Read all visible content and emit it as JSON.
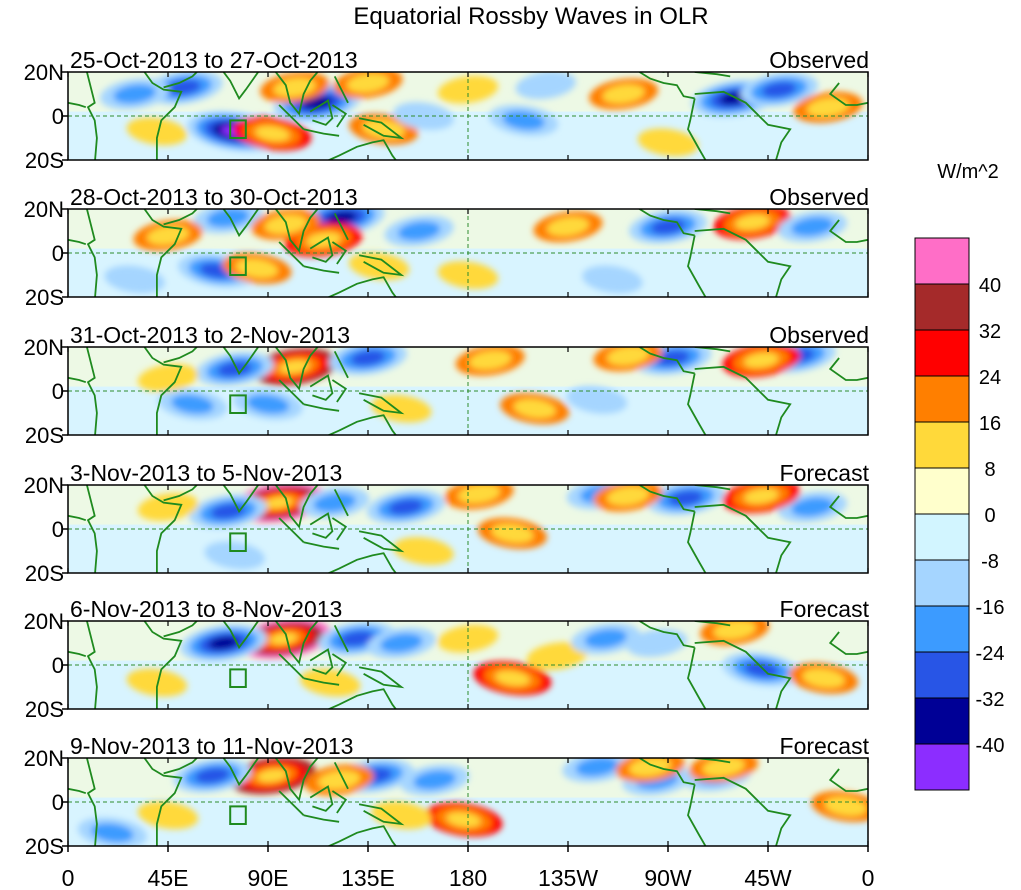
{
  "chart_data": {
    "type": "heatmap",
    "title": "Equatorial Rossby Waves in OLR",
    "variable": "OLR anomaly",
    "units": "W/m^2",
    "x_ticks": [
      "0",
      "45E",
      "90E",
      "135E",
      "180",
      "135W",
      "90W",
      "45W",
      "0"
    ],
    "x_range_deg_east": [
      0,
      360
    ],
    "y_ticks": [
      "20N",
      "0",
      "20S"
    ],
    "y_range_deg": [
      -20,
      20
    ],
    "colorbar": {
      "levels": [
        "40",
        "32",
        "24",
        "16",
        "8",
        "0",
        "-8",
        "-16",
        "-24",
        "-32",
        "-40"
      ],
      "colors": [
        "#ff6ec7",
        "#a52a2a",
        "#ff0000",
        "#ff7f00",
        "#ffd93a",
        "#ffffcc",
        "#d2f5ff",
        "#a5d5ff",
        "#3c9bff",
        "#2855e6",
        "#000096",
        "#8c2dff"
      ]
    },
    "panels": [
      {
        "date_range": "25-Oct-2013 to 27-Oct-2013",
        "status": "Observed",
        "features": [
          {
            "lon": 75,
            "lat": -7,
            "value": -40
          },
          {
            "lon": 52,
            "lat": 13,
            "value": -24
          },
          {
            "lon": 112,
            "lat": 6,
            "value": -32
          },
          {
            "lon": 300,
            "lat": 8,
            "value": -32
          },
          {
            "lon": 320,
            "lat": 12,
            "value": -24
          },
          {
            "lon": 92,
            "lat": -8,
            "value": 24
          },
          {
            "lon": 102,
            "lat": 13,
            "value": 16
          },
          {
            "lon": 135,
            "lat": 15,
            "value": 16
          },
          {
            "lon": 142,
            "lat": -6,
            "value": 16
          },
          {
            "lon": 250,
            "lat": 10,
            "value": 16
          },
          {
            "lon": 342,
            "lat": 4,
            "value": 16
          },
          {
            "lon": 30,
            "lat": 10,
            "value": -16
          },
          {
            "lon": 205,
            "lat": -2,
            "value": -16
          },
          {
            "lon": 180,
            "lat": 12,
            "value": 8
          },
          {
            "lon": 40,
            "lat": -7,
            "value": 8
          },
          {
            "lon": 270,
            "lat": -12,
            "value": 8
          },
          {
            "lon": 160,
            "lat": 0,
            "value": -8
          },
          {
            "lon": 215,
            "lat": 14,
            "value": -8
          }
        ]
      },
      {
        "date_range": "28-Oct-2013 to 30-Oct-2013",
        "status": "Observed",
        "features": [
          {
            "lon": 123,
            "lat": 16,
            "value": -32
          },
          {
            "lon": 67,
            "lat": -8,
            "value": -24
          },
          {
            "lon": 72,
            "lat": 16,
            "value": -16
          },
          {
            "lon": 158,
            "lat": 10,
            "value": -16
          },
          {
            "lon": 270,
            "lat": 12,
            "value": -24
          },
          {
            "lon": 115,
            "lat": 6,
            "value": 24
          },
          {
            "lon": 98,
            "lat": 13,
            "value": 16
          },
          {
            "lon": 85,
            "lat": -7,
            "value": 16
          },
          {
            "lon": 308,
            "lat": 14,
            "value": 24
          },
          {
            "lon": 225,
            "lat": 12,
            "value": 16
          },
          {
            "lon": 45,
            "lat": 8,
            "value": 16
          },
          {
            "lon": 335,
            "lat": 12,
            "value": -16
          },
          {
            "lon": 140,
            "lat": -6,
            "value": 8
          },
          {
            "lon": 180,
            "lat": -10,
            "value": 8
          },
          {
            "lon": 245,
            "lat": -12,
            "value": -8
          },
          {
            "lon": 30,
            "lat": -12,
            "value": -8
          }
        ]
      },
      {
        "date_range": "31-Oct-2013 to 2-Nov-2013",
        "status": "Observed",
        "features": [
          {
            "lon": 102,
            "lat": 11,
            "value": 32
          },
          {
            "lon": 135,
            "lat": 15,
            "value": -24
          },
          {
            "lon": 75,
            "lat": 10,
            "value": -24
          },
          {
            "lon": 272,
            "lat": 15,
            "value": -24
          },
          {
            "lon": 328,
            "lat": 16,
            "value": -24
          },
          {
            "lon": 312,
            "lat": 14,
            "value": 24
          },
          {
            "lon": 190,
            "lat": 14,
            "value": 16
          },
          {
            "lon": 252,
            "lat": 16,
            "value": 16
          },
          {
            "lon": 56,
            "lat": -6,
            "value": -16
          },
          {
            "lon": 90,
            "lat": -6,
            "value": -16
          },
          {
            "lon": 150,
            "lat": -8,
            "value": 8
          },
          {
            "lon": 210,
            "lat": -8,
            "value": 16
          },
          {
            "lon": 45,
            "lat": 6,
            "value": 8
          },
          {
            "lon": 238,
            "lat": -4,
            "value": -8
          }
        ]
      },
      {
        "date_range": "3-Nov-2013 to 5-Nov-2013",
        "status": "Forecast",
        "features": [
          {
            "lon": 95,
            "lat": 12,
            "value": 40
          },
          {
            "lon": 72,
            "lat": 8,
            "value": -24
          },
          {
            "lon": 120,
            "lat": 12,
            "value": -16
          },
          {
            "lon": 152,
            "lat": 10,
            "value": -24
          },
          {
            "lon": 240,
            "lat": 16,
            "value": -16
          },
          {
            "lon": 278,
            "lat": 14,
            "value": -24
          },
          {
            "lon": 335,
            "lat": 10,
            "value": -16
          },
          {
            "lon": 312,
            "lat": 15,
            "value": 24
          },
          {
            "lon": 185,
            "lat": 16,
            "value": 16
          },
          {
            "lon": 200,
            "lat": -2,
            "value": 16
          },
          {
            "lon": 252,
            "lat": 15,
            "value": 16
          },
          {
            "lon": 45,
            "lat": 10,
            "value": 8
          },
          {
            "lon": 75,
            "lat": -12,
            "value": -8
          },
          {
            "lon": 160,
            "lat": -10,
            "value": 8
          }
        ]
      },
      {
        "date_range": "6-Nov-2013 to 8-Nov-2013",
        "status": "Forecast",
        "features": [
          {
            "lon": 97,
            "lat": 12,
            "value": 40
          },
          {
            "lon": 70,
            "lat": 10,
            "value": -32
          },
          {
            "lon": 130,
            "lat": 12,
            "value": -24
          },
          {
            "lon": 150,
            "lat": 10,
            "value": -16
          },
          {
            "lon": 200,
            "lat": -6,
            "value": 24
          },
          {
            "lon": 220,
            "lat": 4,
            "value": 8
          },
          {
            "lon": 242,
            "lat": 12,
            "value": -16
          },
          {
            "lon": 312,
            "lat": -2,
            "value": -24
          },
          {
            "lon": 340,
            "lat": -6,
            "value": 16
          },
          {
            "lon": 300,
            "lat": 16,
            "value": 16
          },
          {
            "lon": 180,
            "lat": 12,
            "value": 8
          },
          {
            "lon": 40,
            "lat": -8,
            "value": 8
          },
          {
            "lon": 118,
            "lat": -8,
            "value": 8
          },
          {
            "lon": 265,
            "lat": 10,
            "value": -8
          }
        ]
      },
      {
        "date_range": "9-Nov-2013 to 11-Nov-2013",
        "status": "Forecast",
        "features": [
          {
            "lon": 92,
            "lat": 12,
            "value": 32
          },
          {
            "lon": 65,
            "lat": 12,
            "value": -24
          },
          {
            "lon": 138,
            "lat": 12,
            "value": -24
          },
          {
            "lon": 165,
            "lat": 10,
            "value": -16
          },
          {
            "lon": 178,
            "lat": -8,
            "value": 24
          },
          {
            "lon": 122,
            "lat": 10,
            "value": 16
          },
          {
            "lon": 238,
            "lat": 16,
            "value": -16
          },
          {
            "lon": 265,
            "lat": 10,
            "value": -16
          },
          {
            "lon": 292,
            "lat": 12,
            "value": -16
          },
          {
            "lon": 262,
            "lat": 16,
            "value": 16
          },
          {
            "lon": 295,
            "lat": 16,
            "value": 16
          },
          {
            "lon": 20,
            "lat": -14,
            "value": -16
          },
          {
            "lon": 350,
            "lat": -2,
            "value": 16
          },
          {
            "lon": 150,
            "lat": -6,
            "value": 8
          },
          {
            "lon": 45,
            "lat": -6,
            "value": 8
          }
        ]
      }
    ]
  }
}
